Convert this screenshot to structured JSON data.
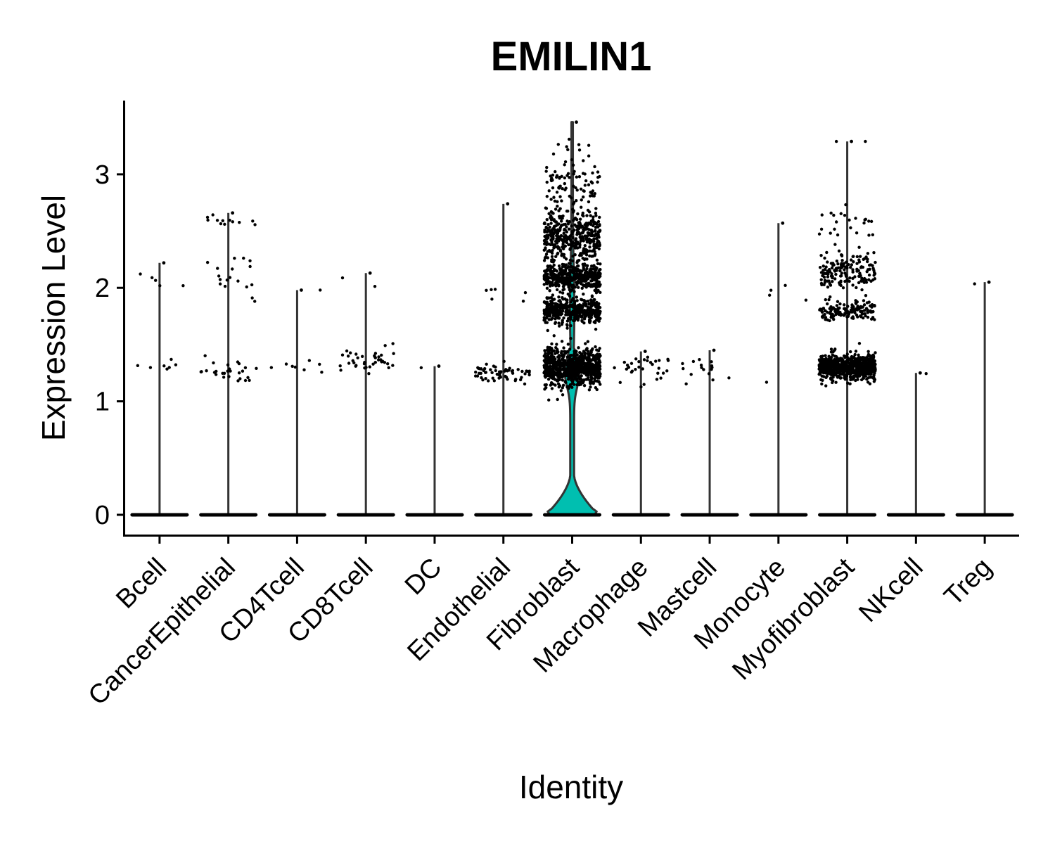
{
  "chart_data": {
    "type": "violin",
    "title": "EMILIN1",
    "xlabel": "Identity",
    "ylabel": "Expression Level",
    "ylim": [
      -0.18,
      3.65
    ],
    "yticks": [
      0,
      1,
      2,
      3
    ],
    "legend": "none",
    "grid": false,
    "jitter_points": true,
    "categories": [
      "Bcell",
      "CancerEpithelial",
      "CD4Tcell",
      "CD8Tcell",
      "DC",
      "Endothelial",
      "Fibroblast",
      "Macrophage",
      "Mastcell",
      "Monocyte",
      "Myofibroblast",
      "NKcell",
      "Treg"
    ],
    "series": [
      {
        "category": "Bcell",
        "color": "#FFFFFF",
        "max": 2.22,
        "clusters": [
          {
            "y": 1.3,
            "n": 7,
            "spread": 0.1
          },
          {
            "y": 2.1,
            "n": 5,
            "spread": 0.15
          }
        ]
      },
      {
        "category": "CancerEpithelial",
        "color": "#FFFFFF",
        "max": 2.66,
        "clusters": [
          {
            "y": 1.28,
            "n": 28,
            "spread": 0.12
          },
          {
            "y": 2.1,
            "n": 18,
            "spread": 0.22
          },
          {
            "y": 2.6,
            "n": 12,
            "spread": 0.06
          }
        ]
      },
      {
        "category": "CD4Tcell",
        "color": "#FFFFFF",
        "max": 1.98,
        "clusters": [
          {
            "y": 1.3,
            "n": 8,
            "spread": 0.08
          },
          {
            "y": 1.98,
            "n": 1,
            "spread": 0.02
          }
        ]
      },
      {
        "category": "CD8Tcell",
        "color": "#FFFFFF",
        "max": 2.13,
        "clusters": [
          {
            "y": 1.35,
            "n": 40,
            "spread": 0.12
          },
          {
            "y": 2.05,
            "n": 2,
            "spread": 0.08
          }
        ]
      },
      {
        "category": "DC",
        "color": "#FFFFFF",
        "max": 1.31,
        "clusters": [
          {
            "y": 1.3,
            "n": 1,
            "spread": 0.02
          }
        ]
      },
      {
        "category": "Endothelial",
        "color": "#FFFFFF",
        "max": 2.74,
        "clusters": [
          {
            "y": 1.25,
            "n": 60,
            "spread": 0.08
          },
          {
            "y": 1.9,
            "n": 6,
            "spread": 0.15
          }
        ]
      },
      {
        "category": "Fibroblast",
        "color": "#00BFB0",
        "max": 3.46,
        "clusters": [
          {
            "y": 1.3,
            "n": 750,
            "spread": 0.17
          },
          {
            "y": 1.8,
            "n": 450,
            "spread": 0.11
          },
          {
            "y": 2.1,
            "n": 450,
            "spread": 0.11
          },
          {
            "y": 2.45,
            "n": 400,
            "spread": 0.22
          },
          {
            "y": 2.9,
            "n": 90,
            "spread": 0.25
          },
          {
            "y": 3.3,
            "n": 6,
            "spread": 0.12
          }
        ]
      },
      {
        "category": "Macrophage",
        "color": "#FFFFFF",
        "max": 1.44,
        "clusters": [
          {
            "y": 1.28,
            "n": 32,
            "spread": 0.12
          }
        ]
      },
      {
        "category": "Mastcell",
        "color": "#FFFFFF",
        "max": 1.45,
        "clusters": [
          {
            "y": 1.28,
            "n": 16,
            "spread": 0.12
          }
        ]
      },
      {
        "category": "Monocyte",
        "color": "#FFFFFF",
        "max": 2.57,
        "clusters": [
          {
            "y": 2.0,
            "n": 4,
            "spread": 0.1
          },
          {
            "y": 1.17,
            "n": 1,
            "spread": 0.02
          }
        ]
      },
      {
        "category": "Myofibroblast",
        "color": "#FFFFFF",
        "max": 3.29,
        "clusters": [
          {
            "y": 1.3,
            "n": 700,
            "spread": 0.11
          },
          {
            "y": 1.8,
            "n": 140,
            "spread": 0.08
          },
          {
            "y": 2.15,
            "n": 160,
            "spread": 0.15
          },
          {
            "y": 2.55,
            "n": 25,
            "spread": 0.15
          },
          {
            "y": 3.28,
            "n": 2,
            "spread": 0.02
          }
        ]
      },
      {
        "category": "NKcell",
        "color": "#FFFFFF",
        "max": 1.25,
        "clusters": [
          {
            "y": 1.24,
            "n": 1,
            "spread": 0.01
          }
        ]
      },
      {
        "category": "Treg",
        "color": "#FFFFFF",
        "max": 2.05,
        "clusters": [
          {
            "y": 2.04,
            "n": 1,
            "spread": 0.01
          }
        ]
      }
    ]
  }
}
